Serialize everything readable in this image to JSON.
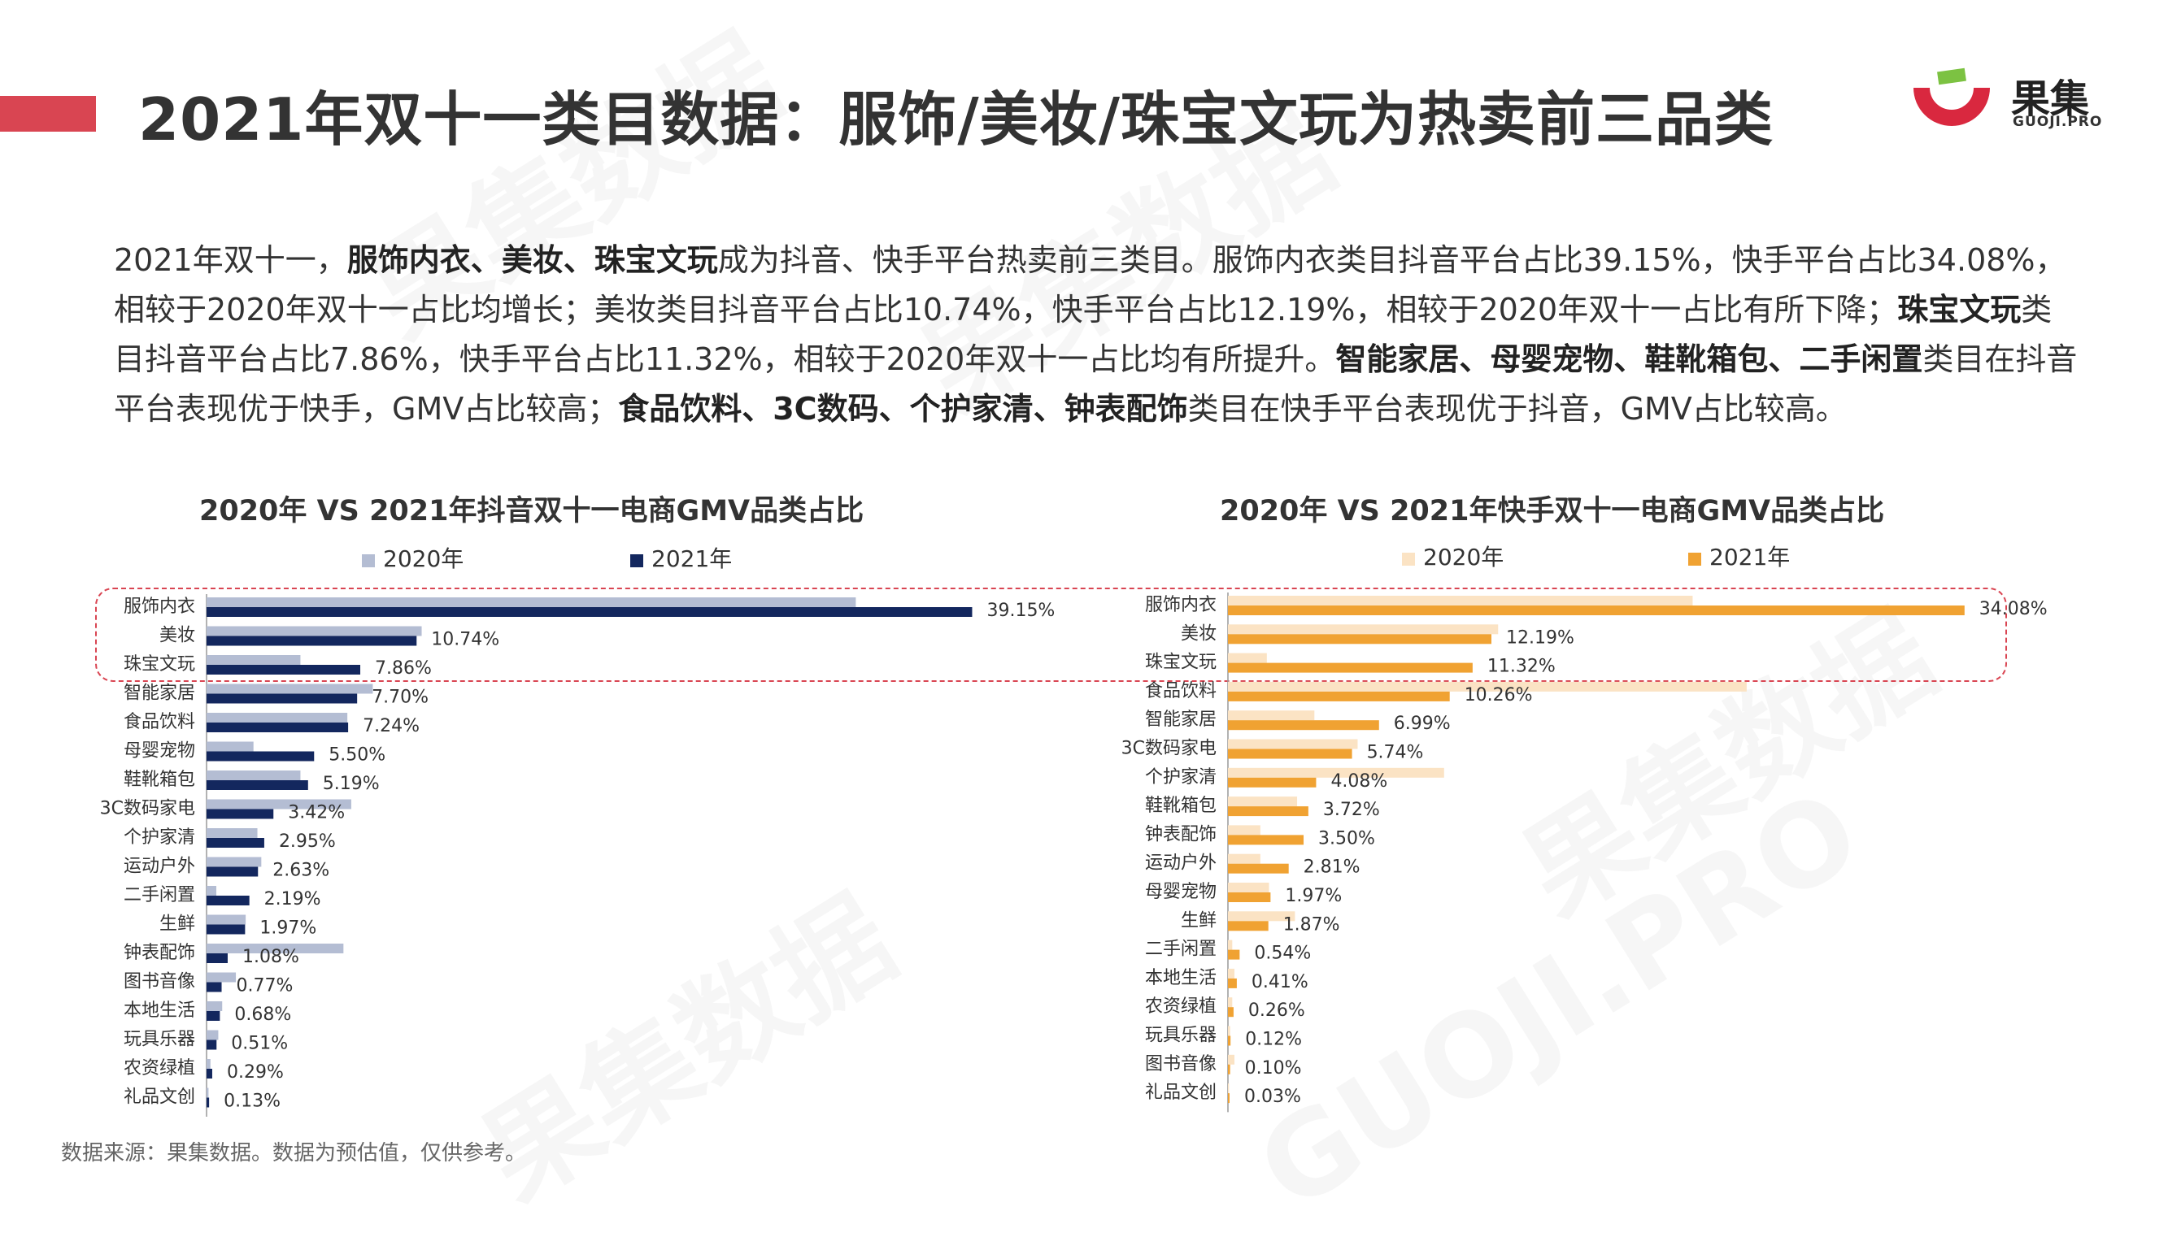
{
  "title": "2021年双十一类目数据：服饰/美妆/珠宝文玩为热卖前三品类",
  "logo": {
    "cn": "果集",
    "en": "GUOJI.PRO"
  },
  "intro_segments": [
    {
      "text": "2021年双十一，",
      "bold": false
    },
    {
      "text": "服饰内衣、美妆、珠宝文玩",
      "bold": true
    },
    {
      "text": "成为抖音、快手平台热卖前三类目。服饰内衣类目抖音平台占比39.15%，快手平台占比34.08%，相较于2020年双十一占比均增长；美妆类目抖音平台占比10.74%，快手平台占比12.19%，相较于2020年双十一占比有所下降；",
      "bold": false
    },
    {
      "text": "珠宝文玩",
      "bold": true
    },
    {
      "text": "类目抖音平台占比7.86%，快手平台占比11.32%，相较于2020年双十一占比均有所提升。",
      "bold": false
    },
    {
      "text": "智能家居、母婴宠物、鞋靴箱包、二手闲置",
      "bold": true
    },
    {
      "text": "类目在抖音平台表现优于快手，GMV占比较高；",
      "bold": false
    },
    {
      "text": "食品饮料、3C数码、个护家清、钟表配饰",
      "bold": true
    },
    {
      "text": "类目在快手平台表现优于抖音，GMV占比较高。",
      "bold": false
    }
  ],
  "source": "数据来源：果集数据。数据为预估值，仅供参考。",
  "watermark": {
    "cn": "果集数据",
    "en": "GUOJI.PRO"
  },
  "chart_data": [
    {
      "type": "bar",
      "orientation": "horizontal",
      "title": "2020年 VS 2021年抖音双十一电商GMV品类占比",
      "categories": [
        "服饰内衣",
        "美妆",
        "珠宝文玩",
        "智能家居",
        "食品饮料",
        "母婴宠物",
        "鞋靴箱包",
        "3C数码家电",
        "个护家清",
        "运动户外",
        "二手闲置",
        "生鲜",
        "钟表配饰",
        "图书音像",
        "本地生活",
        "玩具乐器",
        "农资绿植",
        "礼品文创"
      ],
      "series": [
        {
          "name": "2020年",
          "color": "#b4bdd3",
          "values": [
            33.2,
            11.0,
            4.8,
            8.5,
            7.2,
            2.4,
            4.8,
            7.4,
            2.6,
            2.8,
            0.5,
            2.0,
            7.0,
            1.5,
            0.8,
            0.6,
            0.2,
            0.1
          ]
        },
        {
          "name": "2021年",
          "color": "#13275e",
          "values": [
            39.15,
            10.74,
            7.86,
            7.7,
            7.24,
            5.5,
            5.19,
            3.42,
            2.95,
            2.63,
            2.19,
            1.97,
            1.08,
            0.77,
            0.68,
            0.51,
            0.29,
            0.13
          ]
        }
      ],
      "data_labels": [
        "39.15%",
        "10.74%",
        "7.86%",
        "7.70%",
        "7.24%",
        "5.50%",
        "5.19%",
        "3.42%",
        "2.95%",
        "2.63%",
        "2.19%",
        "1.97%",
        "1.08%",
        "0.77%",
        "0.68%",
        "0.51%",
        "0.29%",
        "0.13%"
      ],
      "xlim": [
        0,
        42
      ],
      "legend_position": "top",
      "grid": false
    },
    {
      "type": "bar",
      "orientation": "horizontal",
      "title": "2020年 VS 2021年快手双十一电商GMV品类占比",
      "categories": [
        "服饰内衣",
        "美妆",
        "珠宝文玩",
        "食品饮料",
        "智能家居",
        "3C数码家电",
        "个护家清",
        "鞋靴箱包",
        "钟表配饰",
        "运动户外",
        "母婴宠物",
        "生鲜",
        "二手闲置",
        "本地生活",
        "农资绿植",
        "玩具乐器",
        "图书音像",
        "礼品文创"
      ],
      "series": [
        {
          "name": "2020年",
          "color": "#fbe3c4",
          "values": [
            21.5,
            12.5,
            1.8,
            24.0,
            4.0,
            6.0,
            10.0,
            3.2,
            1.5,
            1.5,
            1.9,
            3.1,
            0.2,
            0.3,
            0.2,
            0.1,
            0.3,
            0.05
          ]
        },
        {
          "name": "2021年",
          "color": "#f0a232",
          "values": [
            34.08,
            12.19,
            11.32,
            10.26,
            6.99,
            5.74,
            4.08,
            3.72,
            3.5,
            2.81,
            1.97,
            1.87,
            0.54,
            0.41,
            0.26,
            0.12,
            0.1,
            0.03
          ]
        }
      ],
      "data_labels": [
        "34.08%",
        "12.19%",
        "11.32%",
        "10.26%",
        "6.99%",
        "5.74%",
        "4.08%",
        "3.72%",
        "3.50%",
        "2.81%",
        "1.97%",
        "1.87%",
        "0.54%",
        "0.41%",
        "0.26%",
        "0.12%",
        "0.10%",
        "0.03%"
      ],
      "xlim": [
        0,
        38
      ],
      "legend_position": "top",
      "grid": false
    }
  ]
}
